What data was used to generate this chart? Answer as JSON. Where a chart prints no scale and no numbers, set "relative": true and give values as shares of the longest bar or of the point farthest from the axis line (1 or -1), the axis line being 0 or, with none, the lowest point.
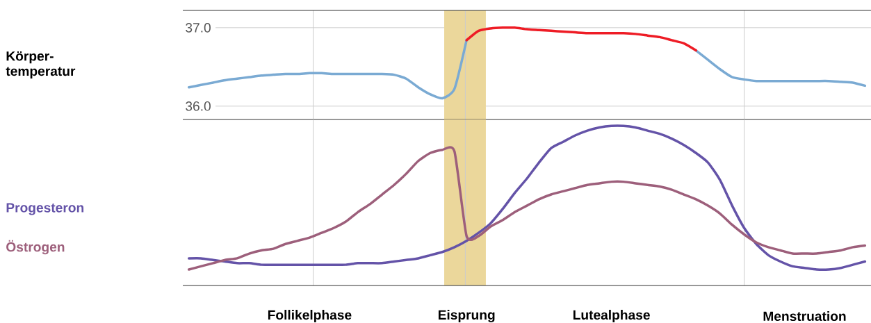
{
  "chart_data": [
    {
      "type": "line",
      "ylabel": "Körper-temperatur",
      "ylim": [
        35.83,
        37.22
      ],
      "categories": [
        null,
        null,
        null,
        null,
        null,
        null,
        null,
        null,
        null,
        null,
        null,
        null,
        null,
        null,
        null,
        null,
        null,
        null,
        null,
        null,
        null,
        null,
        null,
        null,
        null,
        null,
        null,
        null,
        null,
        null,
        null,
        null,
        null,
        null,
        null,
        null,
        null,
        null,
        null,
        null,
        null,
        null,
        null,
        null,
        null,
        null,
        null,
        null,
        null,
        null,
        null,
        null,
        null,
        null,
        null,
        null,
        null
      ],
      "yticks": [
        {
          "value": 36,
          "label": "36.0"
        },
        {
          "value": 37,
          "label": "37.0"
        }
      ],
      "grid": "y",
      "tick_labels": "y",
      "series": [
        {
          "color": "#7aaad3",
          "values": [
            36.24,
            36.27,
            36.3,
            36.33,
            36.35,
            36.37,
            36.39,
            36.4,
            36.41,
            36.41,
            36.42,
            36.42,
            36.41,
            36.41,
            36.41,
            36.41,
            36.41,
            36.4,
            36.35,
            36.24,
            36.15,
            36.1,
            36.22,
            36.84,
            null,
            null,
            null,
            null,
            null,
            null,
            null,
            null,
            null,
            null,
            null,
            null,
            null,
            null,
            null,
            null,
            null,
            null,
            36.71,
            36.59,
            36.47,
            36.37,
            36.34,
            36.32,
            36.32,
            36.32,
            36.32,
            36.32,
            36.32,
            36.32,
            36.31,
            36.3,
            36.26
          ]
        },
        {
          "color": "#ee1c25",
          "values": [
            null,
            null,
            null,
            null,
            null,
            null,
            null,
            null,
            null,
            null,
            null,
            null,
            null,
            null,
            null,
            null,
            null,
            null,
            null,
            null,
            null,
            null,
            null,
            36.84,
            36.96,
            36.99,
            37.0,
            37.0,
            36.98,
            36.97,
            36.96,
            36.95,
            36.94,
            36.93,
            36.93,
            36.93,
            36.93,
            36.92,
            36.9,
            36.88,
            36.84,
            36.8,
            36.71,
            null,
            null,
            null,
            null,
            null,
            null,
            null,
            null,
            null,
            null,
            null,
            null,
            null,
            null
          ]
        }
      ]
    },
    {
      "type": "line",
      "relative": true,
      "tick_labels": "x",
      "legend": "left",
      "categories": [
        null,
        null,
        null,
        null,
        null,
        null,
        null,
        null,
        null,
        null,
        "Follikelphase",
        null,
        null,
        null,
        null,
        null,
        null,
        null,
        null,
        null,
        null,
        null,
        null,
        "Eisprung",
        null,
        null,
        null,
        null,
        null,
        null,
        null,
        null,
        null,
        null,
        null,
        "Lutealphase",
        null,
        null,
        null,
        null,
        null,
        null,
        null,
        null,
        null,
        null,
        null,
        null,
        null,
        null,
        null,
        "Menstruation",
        null,
        null,
        null,
        null,
        null
      ],
      "series": [
        {
          "name": "Progesteron",
          "color": "#6453a8",
          "values": [
            0.17,
            0.17,
            0.16,
            0.15,
            0.14,
            0.14,
            0.13,
            0.13,
            0.13,
            0.13,
            0.13,
            0.13,
            0.13,
            0.13,
            0.14,
            0.14,
            0.14,
            0.15,
            0.16,
            0.17,
            0.19,
            0.21,
            0.24,
            0.28,
            0.33,
            0.39,
            0.48,
            0.58,
            0.67,
            0.77,
            0.86,
            0.9,
            0.94,
            0.97,
            0.99,
            1.0,
            1.0,
            0.99,
            0.97,
            0.95,
            0.92,
            0.88,
            0.83,
            0.77,
            0.66,
            0.5,
            0.36,
            0.26,
            0.19,
            0.15,
            0.12,
            0.11,
            0.1,
            0.1,
            0.11,
            0.13,
            0.15
          ]
        },
        {
          "name": "Östrogen",
          "color": "#9d5f7b",
          "values": [
            0.1,
            0.12,
            0.14,
            0.16,
            0.17,
            0.2,
            0.22,
            0.23,
            0.26,
            0.28,
            0.3,
            0.33,
            0.36,
            0.4,
            0.46,
            0.51,
            0.57,
            0.63,
            0.7,
            0.78,
            0.83,
            0.85,
            0.84,
            0.31,
            0.31,
            0.37,
            0.41,
            0.46,
            0.5,
            0.54,
            0.57,
            0.59,
            0.61,
            0.63,
            0.64,
            0.65,
            0.65,
            0.64,
            0.63,
            0.62,
            0.6,
            0.57,
            0.54,
            0.5,
            0.45,
            0.38,
            0.32,
            0.27,
            0.24,
            0.22,
            0.2,
            0.2,
            0.2,
            0.21,
            0.22,
            0.24,
            0.25
          ]
        }
      ]
    }
  ]
}
